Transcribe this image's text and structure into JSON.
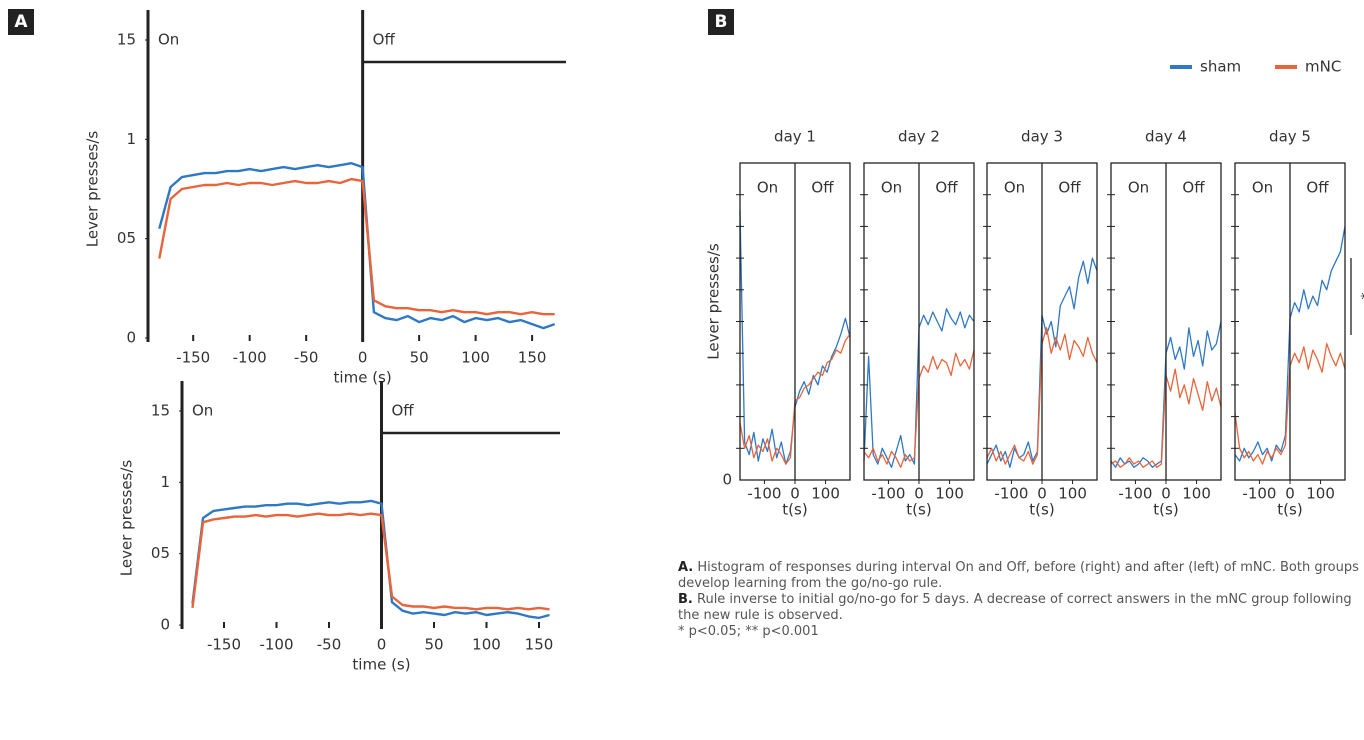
{
  "panels": [
    "A",
    "B"
  ],
  "chart_data": [
    {
      "type": "line",
      "ylabel": "Lever presses/s",
      "xlabel": "time (s)",
      "period_labels": [
        "On",
        "Off"
      ],
      "x": [
        -180,
        -170,
        -160,
        -150,
        -140,
        -130,
        -120,
        -110,
        -100,
        -90,
        -80,
        -70,
        -60,
        -50,
        -40,
        -30,
        -20,
        -10,
        0,
        10,
        20,
        30,
        40,
        50,
        60,
        70,
        80,
        90,
        100,
        110,
        120,
        130,
        140,
        150,
        160,
        170
      ],
      "series": [
        {
          "name": "sham",
          "color": "#2f78c4",
          "values": [
            0.55,
            0.76,
            0.81,
            0.82,
            0.83,
            0.83,
            0.84,
            0.84,
            0.85,
            0.84,
            0.85,
            0.86,
            0.85,
            0.86,
            0.87,
            0.86,
            0.87,
            0.88,
            0.86,
            0.13,
            0.1,
            0.09,
            0.11,
            0.08,
            0.1,
            0.09,
            0.11,
            0.08,
            0.1,
            0.09,
            0.1,
            0.08,
            0.09,
            0.07,
            0.05,
            0.07
          ]
        },
        {
          "name": "mNC",
          "color": "#e8643a",
          "values": [
            0.4,
            0.7,
            0.75,
            0.76,
            0.77,
            0.77,
            0.78,
            0.77,
            0.78,
            0.78,
            0.77,
            0.78,
            0.79,
            0.78,
            0.78,
            0.79,
            0.78,
            0.8,
            0.79,
            0.19,
            0.16,
            0.15,
            0.15,
            0.14,
            0.14,
            0.13,
            0.14,
            0.13,
            0.13,
            0.12,
            0.13,
            0.13,
            0.12,
            0.13,
            0.12,
            0.12
          ]
        }
      ],
      "xlim": [
        -190,
        180
      ],
      "ylim": [
        0,
        1.5
      ],
      "xticks": [
        -150,
        -100,
        -50,
        0,
        50,
        100,
        150
      ],
      "yticks": [
        0,
        {
          "value": 0.5,
          "label": "05"
        },
        1,
        {
          "value": 1.5,
          "label": "15"
        }
      ]
    },
    {
      "type": "line",
      "ylabel": "Lever presses/s",
      "xlabel": "time (s)",
      "period_labels": [
        "On",
        "Off"
      ],
      "x": [
        -180,
        -170,
        -160,
        -150,
        -140,
        -130,
        -120,
        -110,
        -100,
        -90,
        -80,
        -70,
        -60,
        -50,
        -40,
        -30,
        -20,
        -10,
        0,
        10,
        20,
        30,
        40,
        50,
        60,
        70,
        80,
        90,
        100,
        110,
        120,
        130,
        140,
        150,
        160
      ],
      "series": [
        {
          "name": "sham",
          "color": "#2f78c4",
          "values": [
            0.15,
            0.75,
            0.8,
            0.81,
            0.82,
            0.83,
            0.83,
            0.84,
            0.84,
            0.85,
            0.85,
            0.84,
            0.85,
            0.86,
            0.85,
            0.86,
            0.86,
            0.87,
            0.85,
            0.16,
            0.1,
            0.08,
            0.09,
            0.08,
            0.07,
            0.09,
            0.08,
            0.09,
            0.07,
            0.08,
            0.09,
            0.08,
            0.06,
            0.05,
            0.07
          ]
        },
        {
          "name": "mNC",
          "color": "#e8643a",
          "values": [
            0.12,
            0.72,
            0.74,
            0.75,
            0.76,
            0.76,
            0.77,
            0.76,
            0.77,
            0.77,
            0.76,
            0.77,
            0.78,
            0.77,
            0.77,
            0.78,
            0.77,
            0.78,
            0.77,
            0.2,
            0.14,
            0.13,
            0.13,
            0.12,
            0.13,
            0.12,
            0.12,
            0.11,
            0.12,
            0.12,
            0.11,
            0.12,
            0.11,
            0.12,
            0.11
          ]
        }
      ],
      "xlim": [
        -190,
        170
      ],
      "ylim": [
        0,
        1.5
      ],
      "xticks": [
        -150,
        -100,
        -50,
        0,
        50,
        100,
        150
      ],
      "yticks": [
        0,
        {
          "value": 0.5,
          "label": "05"
        },
        1,
        {
          "value": 1.5,
          "label": "15"
        }
      ]
    },
    {
      "type": "day",
      "title": "day 1",
      "xlabel": "t(s)",
      "ylabel": "Lever presses/s",
      "period_labels": [
        "On",
        "Off"
      ],
      "x": [
        -180,
        -165,
        -150,
        -135,
        -120,
        -105,
        -90,
        -75,
        -60,
        -45,
        -30,
        -15,
        0,
        15,
        30,
        45,
        60,
        75,
        90,
        105,
        120,
        135,
        150,
        165,
        180
      ],
      "series": [
        {
          "name": "sham",
          "color": "#2f78c4",
          "values": [
            8.5,
            1.2,
            0.8,
            1.5,
            0.6,
            1.3,
            0.9,
            1.6,
            0.7,
            1.2,
            0.5,
            0.9,
            2.3,
            2.8,
            3.1,
            2.7,
            3.3,
            3.0,
            3.6,
            3.4,
            3.9,
            4.2,
            4.6,
            5.1,
            4.5
          ]
        },
        {
          "name": "mNC",
          "color": "#e8643a",
          "values": [
            1.8,
            1.0,
            1.4,
            0.7,
            1.1,
            0.9,
            1.3,
            0.6,
            1.0,
            0.8,
            0.5,
            0.7,
            2.5,
            2.6,
            2.9,
            3.0,
            3.2,
            3.4,
            3.3,
            3.7,
            3.8,
            4.1,
            4.0,
            4.4,
            4.6
          ]
        }
      ],
      "xlim": [
        -180,
        180
      ],
      "ylim": [
        0,
        10
      ],
      "xticks": [
        -100,
        0,
        100
      ],
      "yticks": [
        0
      ],
      "minor_yticks": [
        1,
        2,
        3,
        4,
        5,
        6,
        7,
        8,
        9
      ]
    },
    {
      "type": "day",
      "title": "day 2",
      "xlabel": "t(s)",
      "period_labels": [
        "On",
        "Off"
      ],
      "x": [
        -180,
        -165,
        -150,
        -135,
        -120,
        -105,
        -90,
        -75,
        -60,
        -45,
        -30,
        -15,
        0,
        15,
        30,
        45,
        60,
        75,
        90,
        105,
        120,
        135,
        150,
        165,
        180
      ],
      "series": [
        {
          "color": "#2f78c4",
          "values": [
            0.6,
            3.9,
            0.8,
            0.5,
            1.0,
            0.7,
            0.4,
            0.9,
            1.4,
            0.6,
            0.8,
            0.5,
            4.8,
            5.2,
            4.9,
            5.3,
            5.0,
            4.7,
            5.4,
            5.1,
            4.9,
            5.3,
            4.8,
            5.2,
            5.0
          ]
        },
        {
          "color": "#e8643a",
          "values": [
            0.9,
            0.7,
            1.0,
            0.6,
            0.8,
            0.5,
            0.9,
            0.7,
            0.4,
            0.8,
            0.6,
            0.7,
            3.2,
            3.6,
            3.4,
            3.9,
            3.5,
            3.8,
            3.7,
            3.3,
            4.0,
            3.6,
            3.8,
            3.5,
            4.1
          ]
        }
      ],
      "xlim": [
        -180,
        180
      ],
      "ylim": [
        0,
        10
      ],
      "xticks": [
        -100,
        0,
        100
      ],
      "minor_yticks": [
        1,
        2,
        3,
        4,
        5,
        6,
        7,
        8,
        9
      ]
    },
    {
      "type": "day",
      "title": "day 3",
      "xlabel": "t(s)",
      "period_labels": [
        "On",
        "Off"
      ],
      "x": [
        -180,
        -165,
        -150,
        -135,
        -120,
        -105,
        -90,
        -75,
        -60,
        -45,
        -30,
        -15,
        0,
        15,
        30,
        45,
        60,
        75,
        90,
        105,
        120,
        135,
        150,
        165,
        180
      ],
      "series": [
        {
          "color": "#2f78c4",
          "values": [
            0.5,
            0.8,
            1.1,
            0.6,
            0.9,
            0.4,
            1.0,
            0.7,
            0.8,
            1.2,
            0.6,
            0.9,
            5.2,
            4.6,
            5.0,
            4.2,
            5.5,
            5.8,
            6.1,
            5.4,
            6.4,
            6.9,
            6.2,
            7.0,
            6.6
          ]
        },
        {
          "color": "#e8643a",
          "values": [
            0.7,
            1.0,
            0.6,
            0.9,
            0.5,
            0.8,
            1.1,
            0.7,
            0.6,
            0.9,
            0.5,
            0.8,
            4.3,
            4.8,
            4.0,
            4.5,
            4.1,
            4.6,
            3.8,
            4.4,
            4.2,
            3.9,
            4.5,
            4.0,
            3.7
          ]
        }
      ],
      "xlim": [
        -180,
        180
      ],
      "ylim": [
        0,
        10
      ],
      "xticks": [
        -100,
        0,
        100
      ],
      "minor_yticks": [
        1,
        2,
        3,
        4,
        5,
        6,
        7,
        8,
        9
      ]
    },
    {
      "type": "day",
      "title": "day 4",
      "xlabel": "t(s)",
      "period_labels": [
        "On",
        "Off"
      ],
      "x": [
        -180,
        -165,
        -150,
        -135,
        -120,
        -105,
        -90,
        -75,
        -60,
        -45,
        -30,
        -15,
        0,
        15,
        30,
        45,
        60,
        75,
        90,
        105,
        120,
        135,
        150,
        165,
        180
      ],
      "series": [
        {
          "color": "#2f78c4",
          "values": [
            0.6,
            0.4,
            0.7,
            0.5,
            0.6,
            0.4,
            0.5,
            0.7,
            0.6,
            0.4,
            0.5,
            0.6,
            4.0,
            4.5,
            3.8,
            4.2,
            3.5,
            4.8,
            3.9,
            4.4,
            3.6,
            4.7,
            4.1,
            4.3,
            5.0
          ]
        },
        {
          "color": "#e8643a",
          "values": [
            0.5,
            0.6,
            0.4,
            0.5,
            0.7,
            0.5,
            0.6,
            0.4,
            0.5,
            0.6,
            0.4,
            0.5,
            3.3,
            2.8,
            3.5,
            2.6,
            3.0,
            2.4,
            3.2,
            2.7,
            2.2,
            3.1,
            2.5,
            2.9,
            2.3
          ]
        }
      ],
      "xlim": [
        -180,
        180
      ],
      "ylim": [
        0,
        10
      ],
      "xticks": [
        -100,
        0,
        100
      ],
      "minor_yticks": [
        1,
        2,
        3,
        4,
        5,
        6,
        7,
        8,
        9
      ]
    },
    {
      "type": "day",
      "title": "day 5",
      "xlabel": "t(s)",
      "period_labels": [
        "On",
        "Off"
      ],
      "annotation": "*",
      "x": [
        -180,
        -165,
        -150,
        -135,
        -120,
        -105,
        -90,
        -75,
        -60,
        -45,
        -30,
        -15,
        0,
        15,
        30,
        45,
        60,
        75,
        90,
        105,
        120,
        135,
        150,
        165,
        180
      ],
      "series": [
        {
          "color": "#2f78c4",
          "values": [
            0.8,
            0.6,
            1.0,
            0.7,
            0.9,
            1.2,
            0.8,
            1.0,
            0.6,
            1.1,
            0.9,
            1.4,
            5.1,
            5.6,
            5.3,
            6.0,
            5.4,
            5.8,
            5.5,
            6.3,
            6.0,
            6.6,
            6.9,
            7.2,
            8.0
          ]
        },
        {
          "color": "#e8643a",
          "values": [
            2.1,
            1.0,
            0.7,
            0.9,
            0.6,
            0.8,
            0.5,
            0.9,
            0.7,
            1.0,
            0.8,
            1.1,
            3.6,
            4.0,
            3.7,
            4.2,
            3.5,
            4.1,
            3.8,
            3.4,
            4.3,
            3.9,
            3.6,
            4.0,
            3.5
          ]
        }
      ],
      "xlim": [
        -180,
        180
      ],
      "ylim": [
        0,
        10
      ],
      "xticks": [
        -100,
        0,
        100
      ],
      "minor_yticks": [
        1,
        2,
        3,
        4,
        5,
        6,
        7,
        8,
        9
      ]
    }
  ],
  "caption": [
    {
      "label": "A.",
      "text": "Histogram of responses during interval On and Off, before (right) and after (left) of mNC. Both groups develop learning from the go/no-go rule."
    },
    {
      "label": "B.",
      "text": "Rule inverse to initial go/no-go for 5 days. A decrease of correct answers in the mNC group following the new rule is observed."
    },
    {
      "text": "* p<0.05; ** p<0.001"
    }
  ]
}
